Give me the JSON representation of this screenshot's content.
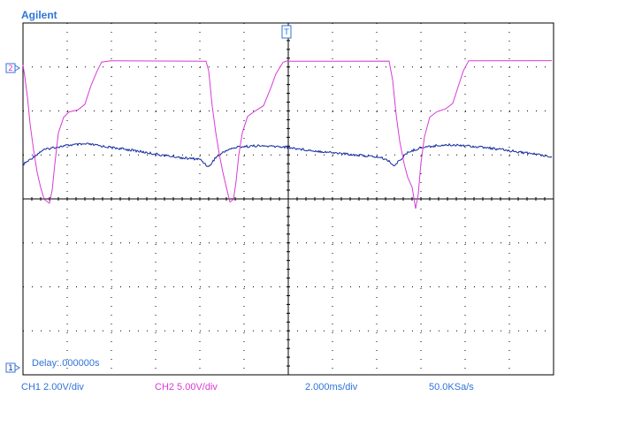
{
  "brand": "Agilent",
  "delay": "Delay:.000000s",
  "status": {
    "ch1": "CH1 2.00V/div",
    "ch2": "CH2 5.00V/div",
    "timebase": "2.000ms/div",
    "samplerate": "50.0KSa/s"
  },
  "markers": {
    "ch1_label": "1",
    "ch2_label": "2",
    "trigger_label": "T"
  },
  "colors": {
    "ch1": "#102a9c",
    "ch2": "#d63cd6",
    "grid": "#000000",
    "marker": "#2f74d8",
    "status_ch1": "#2f74d8",
    "status_ch2": "#d63cd6"
  }
}
